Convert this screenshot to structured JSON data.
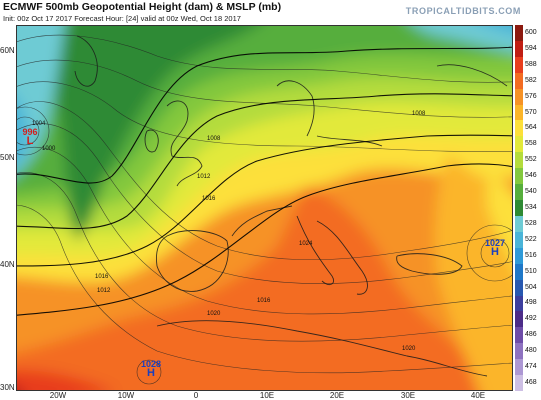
{
  "header": {
    "title": "ECMWF 500mb Geopotential Height (dam) & MSLP (mb)",
    "subtitle": "Init: 00z Oct 17 2017   Forecast Hour: [24]   valid at 00z Wed, Oct 18 2017",
    "brand": "TROPICALTIDBITS.COM"
  },
  "axes": {
    "lat_labels": [
      "60N",
      "50N",
      "40N",
      "30N"
    ],
    "lon_labels": [
      "20W",
      "10W",
      "0",
      "10E",
      "20E",
      "30E",
      "40E"
    ]
  },
  "colorbar": {
    "values": [
      "600",
      "594",
      "588",
      "582",
      "576",
      "570",
      "564",
      "558",
      "552",
      "546",
      "540",
      "534",
      "528",
      "522",
      "516",
      "510",
      "504",
      "498",
      "492",
      "486",
      "480",
      "474",
      "468"
    ],
    "colors": [
      "#8c1a10",
      "#c01e14",
      "#e83e1e",
      "#f36c22",
      "#f69226",
      "#fbb52a",
      "#fde03a",
      "#e2e93a",
      "#b4dc3c",
      "#83c83e",
      "#56ae3c",
      "#2e8a34",
      "#6ecbd4",
      "#4ab4d8",
      "#2f9ad8",
      "#1f78c8",
      "#2858b0",
      "#3c3e9e",
      "#4c2c88",
      "#6e4ca8",
      "#8e72c0",
      "#ad98d4",
      "#cdbfe4"
    ]
  },
  "pressure_centers": [
    {
      "value": "996",
      "letter": "L",
      "color": "#d02020"
    },
    {
      "value": "1027",
      "letter": "H",
      "color": "#1a3fbf"
    },
    {
      "value": "1028",
      "letter": "H",
      "color": "#1a3fbf"
    }
  ],
  "isobar_labels": [
    "1008",
    "1012",
    "1016",
    "1016",
    "1020",
    "1020",
    "1024",
    "1016",
    "1012",
    "1008",
    "1004",
    "1000"
  ]
}
